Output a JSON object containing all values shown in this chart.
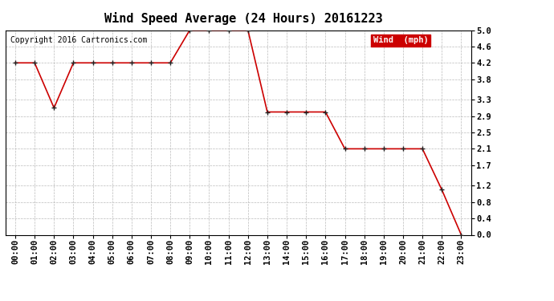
{
  "title": "Wind Speed Average (24 Hours) 20161223",
  "copyright": "Copyright 2016 Cartronics.com",
  "legend_label": "Wind  (mph)",
  "x_labels": [
    "00:00",
    "01:00",
    "02:00",
    "03:00",
    "04:00",
    "05:00",
    "06:00",
    "07:00",
    "08:00",
    "09:00",
    "10:00",
    "11:00",
    "12:00",
    "13:00",
    "14:00",
    "15:00",
    "16:00",
    "17:00",
    "18:00",
    "19:00",
    "20:00",
    "21:00",
    "22:00",
    "23:00"
  ],
  "y_values": [
    4.2,
    4.2,
    3.1,
    4.2,
    4.2,
    4.2,
    4.2,
    4.2,
    4.2,
    5.0,
    5.0,
    5.0,
    5.0,
    3.0,
    3.0,
    3.0,
    3.0,
    2.1,
    2.1,
    2.1,
    2.1,
    2.1,
    1.1,
    0.0
  ],
  "y_ticks": [
    0.0,
    0.4,
    0.8,
    1.2,
    1.7,
    2.1,
    2.5,
    2.9,
    3.3,
    3.8,
    4.2,
    4.6,
    5.0
  ],
  "ylim": [
    0.0,
    5.0
  ],
  "line_color": "#cc0000",
  "marker_color": "#222222",
  "legend_bg": "#cc0000",
  "legend_text_color": "#ffffff",
  "background_color": "#ffffff",
  "grid_color": "#bbbbbb",
  "title_fontsize": 11,
  "copyright_fontsize": 7,
  "tick_fontsize": 7.5,
  "legend_fontsize": 7.5
}
